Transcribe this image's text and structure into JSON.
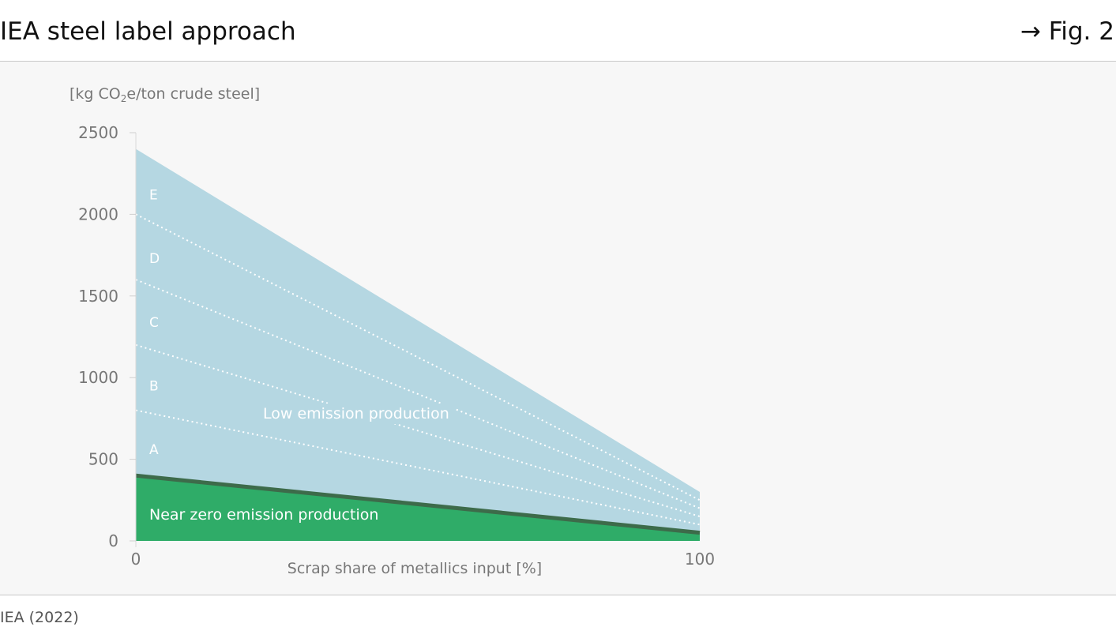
{
  "header": {
    "title": "IEA steel label approach",
    "figure_ref": "→ Fig. 2"
  },
  "source": "IEA (2022)",
  "colors": {
    "low_emission": "#b5d7e2",
    "near_zero": "#2fac68",
    "near_zero_line": "#3d6b4a",
    "band_line": "#ffffff"
  },
  "chart_data": {
    "type": "area",
    "ylabel_prefix": "[kg CO",
    "ylabel_sub": "2",
    "ylabel_suffix": "e/ton crude steel]",
    "xlabel": "Scrap share of metallics input [%]",
    "xlim": [
      0,
      100
    ],
    "ylim": [
      0,
      2500
    ],
    "x_ticks": [
      "0",
      "100"
    ],
    "y_ticks": [
      "0",
      "500",
      "1000",
      "1500",
      "2000",
      "2500"
    ],
    "grid": false,
    "areas": [
      {
        "name": "Low emission production",
        "x": [
          0,
          100
        ],
        "y": [
          2400,
          300
        ]
      },
      {
        "name": "Near zero emission production",
        "x": [
          0,
          100
        ],
        "y": [
          400,
          50
        ]
      }
    ],
    "thresholds": [
      {
        "x": [
          0,
          100
        ],
        "y": [
          800,
          100
        ]
      },
      {
        "x": [
          0,
          100
        ],
        "y": [
          1200,
          150
        ]
      },
      {
        "x": [
          0,
          100
        ],
        "y": [
          1600,
          200
        ]
      },
      {
        "x": [
          0,
          100
        ],
        "y": [
          2000,
          250
        ]
      }
    ],
    "bands": [
      "A",
      "B",
      "C",
      "D",
      "E"
    ],
    "band_label_y": [
      560,
      950,
      1340,
      1730,
      2120
    ]
  }
}
